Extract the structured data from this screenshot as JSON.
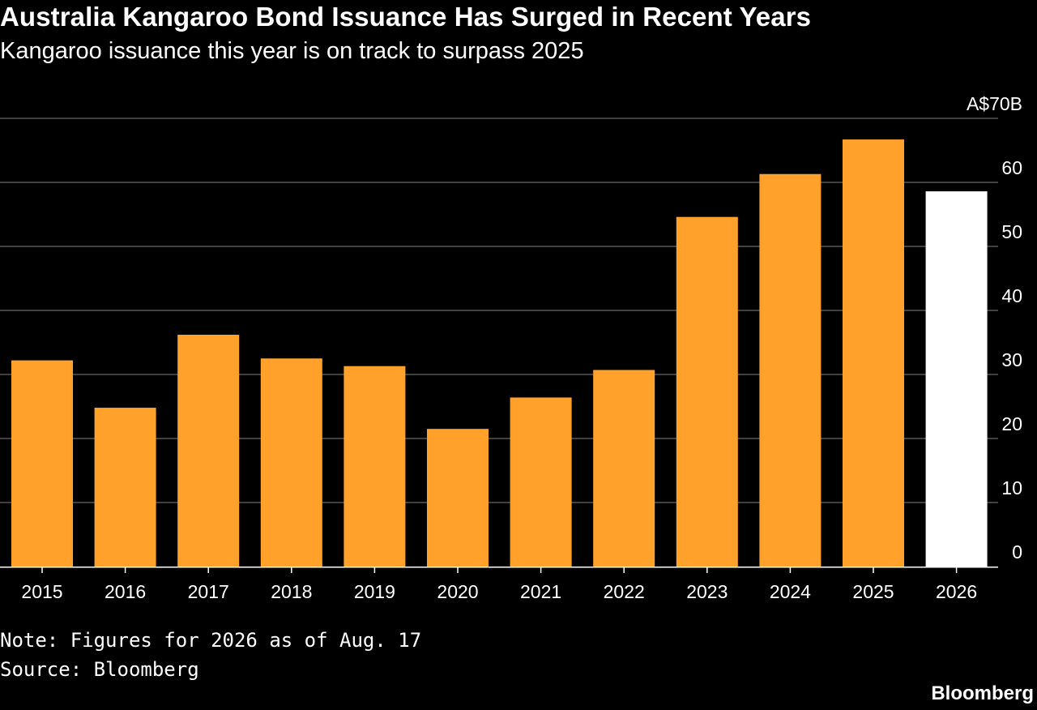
{
  "header": {
    "title": "Australia Kangaroo Bond Issuance Has Surged in Recent Years",
    "subtitle": "Kangaroo issuance this year is on track to surpass 2025"
  },
  "chart_data": {
    "type": "bar",
    "title": "Australia Kangaroo Bond Issuance Has Surged in Recent Years",
    "subtitle": "Kangaroo issuance this year is on track to surpass 2025",
    "categories": [
      "2015",
      "2016",
      "2017",
      "2018",
      "2019",
      "2020",
      "2021",
      "2022",
      "2023",
      "2024",
      "2025",
      "2026"
    ],
    "values": [
      32.2,
      24.8,
      36.2,
      32.5,
      31.3,
      21.5,
      26.4,
      30.7,
      54.6,
      61.3,
      66.7,
      58.6
    ],
    "bar_colors": [
      "#ffa12b",
      "#ffa12b",
      "#ffa12b",
      "#ffa12b",
      "#ffa12b",
      "#ffa12b",
      "#ffa12b",
      "#ffa12b",
      "#ffa12b",
      "#ffa12b",
      "#ffa12b",
      "#ffffff"
    ],
    "ylim": [
      0,
      70
    ],
    "yticks": [
      {
        "value": 0,
        "label": "0"
      },
      {
        "value": 10,
        "label": "10"
      },
      {
        "value": 20,
        "label": "20"
      },
      {
        "value": 30,
        "label": "30"
      },
      {
        "value": 40,
        "label": "40"
      },
      {
        "value": 50,
        "label": "50"
      },
      {
        "value": 60,
        "label": "60"
      },
      {
        "value": 70,
        "label": "A$70B"
      }
    ],
    "y_axis_side": "right",
    "grid": true,
    "xlabel": "",
    "ylabel": ""
  },
  "footer": {
    "note": "Note: Figures for 2026 as of Aug. 17",
    "source": "Source: Bloomberg",
    "brand": "Bloomberg"
  },
  "colors": {
    "background": "#000000",
    "bar": "#ffa12b",
    "highlight_bar": "#ffffff",
    "gridline": "#555555",
    "text": "#ffffff"
  }
}
